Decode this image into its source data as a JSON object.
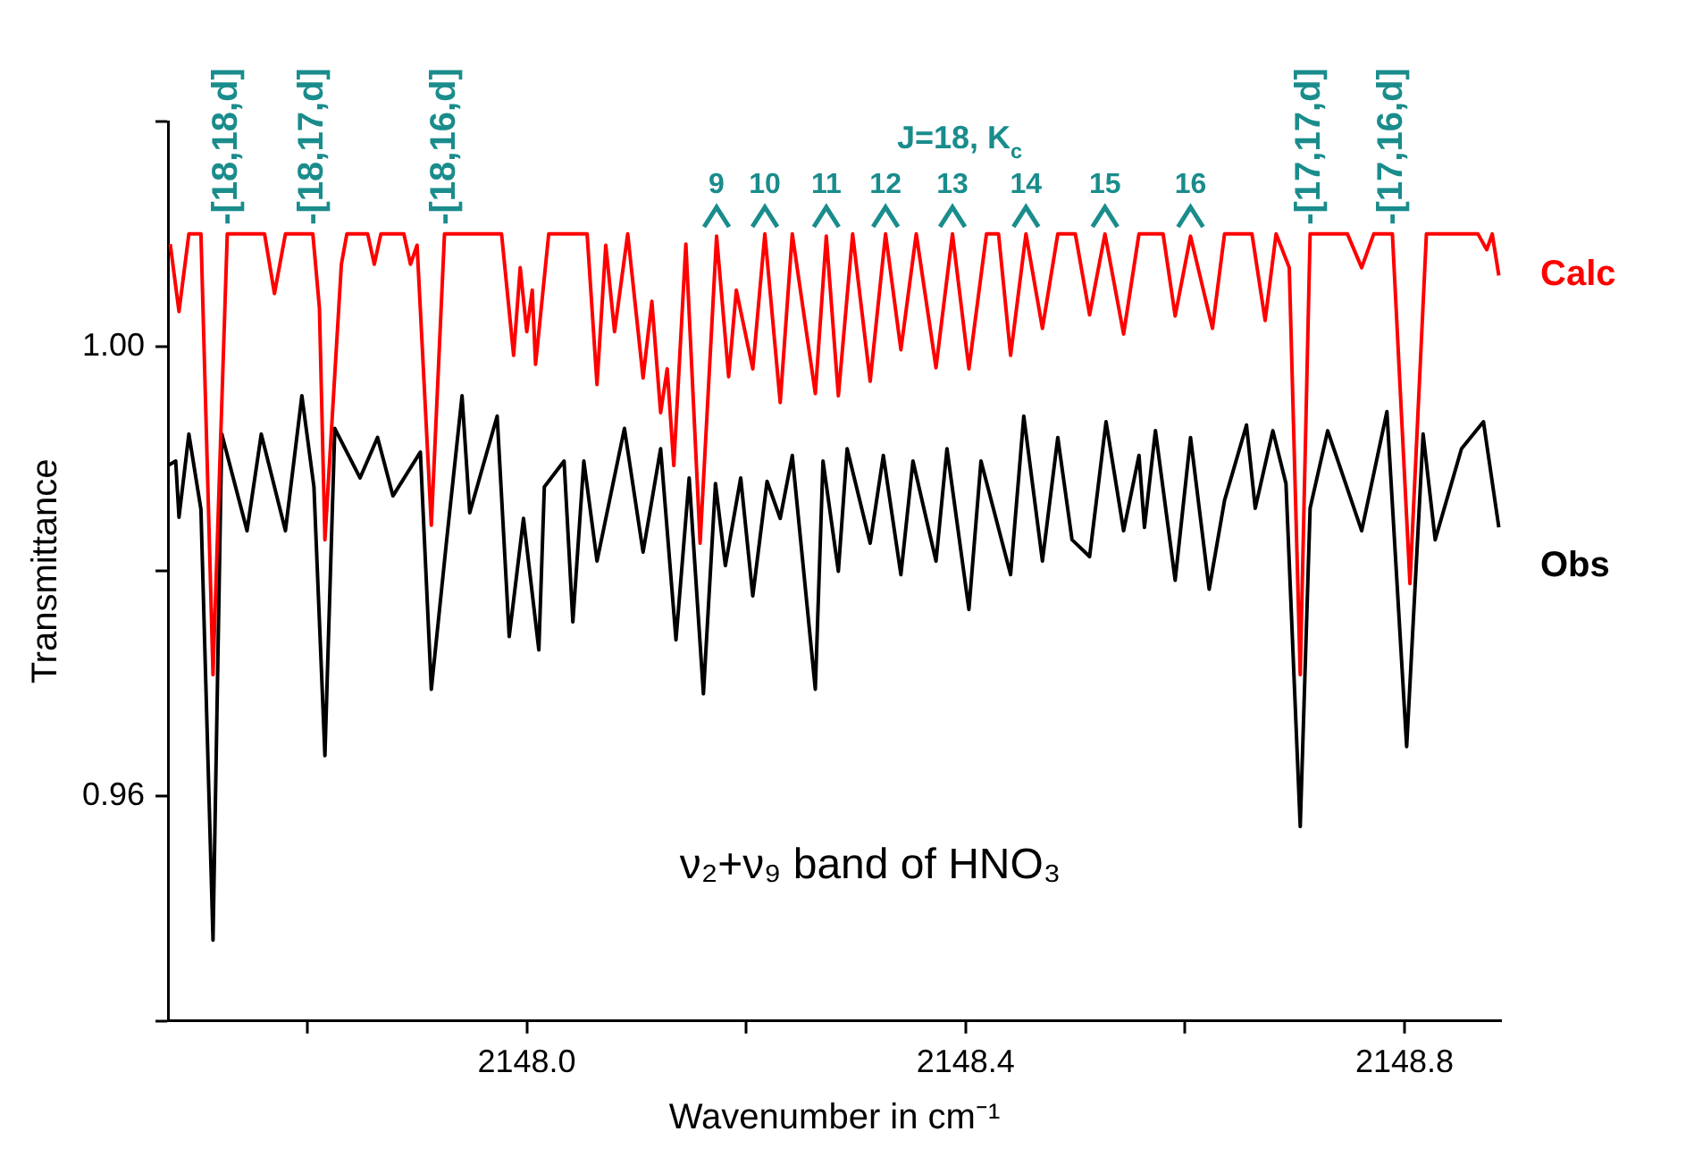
{
  "chart_data": {
    "type": "line",
    "xlabel": "Wavenumber in cm⁻¹",
    "ylabel": "Transmittance",
    "xlim": [
      2147.673,
      2148.888
    ],
    "ylim": [
      0.94,
      1.02
    ],
    "xticks": [
      {
        "value": 2147.8,
        "label": null
      },
      {
        "value": 2148.0,
        "label": "2148.0"
      },
      {
        "value": 2148.2,
        "label": null
      },
      {
        "value": 2148.4,
        "label": "2148.4"
      },
      {
        "value": 2148.6,
        "label": null
      },
      {
        "value": 2148.8,
        "label": "2148.8"
      }
    ],
    "yticks": [
      {
        "value": 0.94,
        "label": null
      },
      {
        "value": 0.96,
        "label": "0.96"
      },
      {
        "value": 0.98,
        "label": null
      },
      {
        "value": 1.0,
        "label": "1.00"
      },
      {
        "value": 1.02,
        "label": null
      }
    ],
    "grid": false,
    "legend": false,
    "marker": "none",
    "line_style": "solid",
    "series": [
      {
        "name": "Calc",
        "color": "#ff0000",
        "x": [
          2147.675,
          2147.683,
          2147.692,
          2147.703,
          2147.714,
          2147.727,
          2147.761,
          2147.77,
          2147.78,
          2147.805,
          2147.811,
          2147.816,
          2147.831,
          2147.836,
          2147.855,
          2147.861,
          2147.867,
          2147.888,
          2147.894,
          2147.9,
          2147.913,
          2147.925,
          2147.977,
          2147.988,
          2147.994,
          2148.0,
          2148.005,
          2148.008,
          2148.02,
          2148.055,
          2148.064,
          2148.072,
          2148.08,
          2148.092,
          2148.106,
          2148.114,
          2148.122,
          2148.128,
          2148.134,
          2148.145,
          2148.158,
          2148.173,
          2148.184,
          2148.191,
          2148.206,
          2148.217,
          2148.231,
          2148.242,
          2148.263,
          2148.273,
          2148.284,
          2148.297,
          2148.313,
          2148.327,
          2148.341,
          2148.355,
          2148.373,
          2148.388,
          2148.403,
          2148.419,
          2148.43,
          2148.441,
          2148.455,
          2148.47,
          2148.484,
          2148.5,
          2148.513,
          2148.527,
          2148.544,
          2148.558,
          2148.58,
          2148.591,
          2148.605,
          2148.625,
          2148.636,
          2148.661,
          2148.673,
          2148.683,
          2148.695,
          2148.705,
          2148.714,
          2148.748,
          2148.761,
          2148.772,
          2148.789,
          2148.805,
          2148.82,
          2148.867,
          2148.875,
          2148.88,
          2148.886
        ],
        "values": [
          1.0091,
          1.0031,
          1.01,
          1.01,
          0.9708,
          1.01,
          1.01,
          1.0047,
          1.01,
          1.01,
          1.0034,
          0.9828,
          1.0073,
          1.01,
          1.01,
          1.0073,
          1.01,
          1.01,
          1.0073,
          1.009,
          0.9841,
          1.01,
          1.01,
          0.9992,
          1.007,
          1.0013,
          1.005,
          0.9984,
          1.01,
          1.01,
          0.9966,
          1.009,
          1.0013,
          1.01,
          0.9972,
          1.004,
          0.9941,
          0.998,
          0.9894,
          1.0091,
          0.9825,
          1.0098,
          0.9973,
          1.005,
          0.998,
          1.01,
          0.995,
          1.01,
          0.9958,
          1.0098,
          0.9956,
          1.01,
          0.9969,
          1.01,
          0.9997,
          1.01,
          0.9981,
          1.01,
          0.998,
          1.01,
          1.01,
          0.9992,
          1.01,
          1.0016,
          1.01,
          1.01,
          1.0028,
          1.01,
          1.0011,
          1.01,
          1.01,
          1.0027,
          1.0098,
          1.0016,
          1.01,
          1.01,
          1.0023,
          1.01,
          1.007,
          0.9708,
          1.01,
          1.01,
          1.007,
          1.01,
          1.01,
          0.9789,
          1.01,
          1.01,
          1.0086,
          1.01,
          1.0063
        ]
      },
      {
        "name": "Obs",
        "color": "#000000",
        "x": [
          2147.673,
          2147.68,
          2147.683,
          2147.692,
          2147.703,
          2147.714,
          2147.722,
          2147.745,
          2147.758,
          2147.78,
          2147.795,
          2147.806,
          2147.816,
          2147.825,
          2147.848,
          2147.864,
          2147.878,
          2147.903,
          2147.913,
          2147.927,
          2147.941,
          2147.948,
          2147.966,
          2147.973,
          2147.984,
          2147.997,
          2148.011,
          2148.016,
          2148.034,
          2148.042,
          2148.052,
          2148.064,
          2148.089,
          2148.106,
          2148.122,
          2148.136,
          2148.148,
          2148.161,
          2148.172,
          2148.181,
          2148.195,
          2148.206,
          2148.219,
          2148.231,
          2148.242,
          2148.263,
          2148.27,
          2148.284,
          2148.292,
          2148.313,
          2148.325,
          2148.341,
          2148.352,
          2148.373,
          2148.383,
          2148.403,
          2148.414,
          2148.441,
          2148.453,
          2148.47,
          2148.484,
          2148.497,
          2148.513,
          2148.528,
          2148.544,
          2148.558,
          2148.563,
          2148.573,
          2148.591,
          2148.605,
          2148.622,
          2148.636,
          2148.656,
          2148.664,
          2148.68,
          2148.692,
          2148.705,
          2148.714,
          2148.73,
          2148.761,
          2148.784,
          2148.802,
          2148.817,
          2148.828,
          2148.852,
          2148.872,
          2148.886
        ],
        "values": [
          0.9894,
          0.9898,
          0.9848,
          0.9922,
          0.9855,
          0.9472,
          0.9922,
          0.9836,
          0.9922,
          0.9836,
          0.9956,
          0.9875,
          0.9636,
          0.9927,
          0.9883,
          0.9919,
          0.9867,
          0.9906,
          0.9695,
          0.9828,
          0.9956,
          0.9852,
          0.9914,
          0.9938,
          0.9742,
          0.9847,
          0.973,
          0.9875,
          0.9898,
          0.9755,
          0.9898,
          0.9809,
          0.9927,
          0.9817,
          0.9909,
          0.9739,
          0.9883,
          0.9691,
          0.9878,
          0.9805,
          0.9883,
          0.9778,
          0.988,
          0.9847,
          0.9903,
          0.9695,
          0.9898,
          0.98,
          0.9909,
          0.9825,
          0.9903,
          0.9797,
          0.9898,
          0.9809,
          0.9909,
          0.9766,
          0.9898,
          0.9797,
          0.9938,
          0.9809,
          0.9919,
          0.9828,
          0.9813,
          0.9933,
          0.9836,
          0.9903,
          0.9839,
          0.9925,
          0.9792,
          0.9919,
          0.9784,
          0.9863,
          0.993,
          0.9856,
          0.9925,
          0.9878,
          0.9573,
          0.9856,
          0.9925,
          0.9836,
          0.9942,
          0.9644,
          0.9922,
          0.9828,
          0.9909,
          0.9933,
          0.9839
        ]
      }
    ],
    "annotations": [
      "J=18, K$_{c}$",
      "ν₂+ν₉ band of HNO₃",
      {
        "text": "-[18,18,d]",
        "x": 2147.727,
        "y": 1.01
      },
      {
        "text": "-[18,17,d]",
        "x": 2147.805,
        "y": 1.01
      },
      {
        "text": "-[18,16,d]",
        "x": 2147.925,
        "y": 1.01
      },
      {
        "text": "9",
        "x": 2148.173,
        "y": 1.0098
      },
      {
        "text": "10",
        "x": 2148.217,
        "y": 1.01
      },
      {
        "text": "11",
        "x": 2148.273,
        "y": 1.0098
      },
      {
        "text": "12",
        "x": 2148.327,
        "y": 1.01
      },
      {
        "text": "13",
        "x": 2148.388,
        "y": 1.01
      },
      {
        "text": "14",
        "x": 2148.455,
        "y": 1.01
      },
      {
        "text": "15",
        "x": 2148.527,
        "y": 1.01
      },
      {
        "text": "16",
        "x": 2148.605,
        "y": 1.0098
      },
      {
        "text": "-[17,17,d]",
        "x": 2148.714,
        "y": 1.01
      },
      {
        "text": "-[17,16,d]",
        "x": 2148.789,
        "y": 1.01
      }
    ]
  }
}
